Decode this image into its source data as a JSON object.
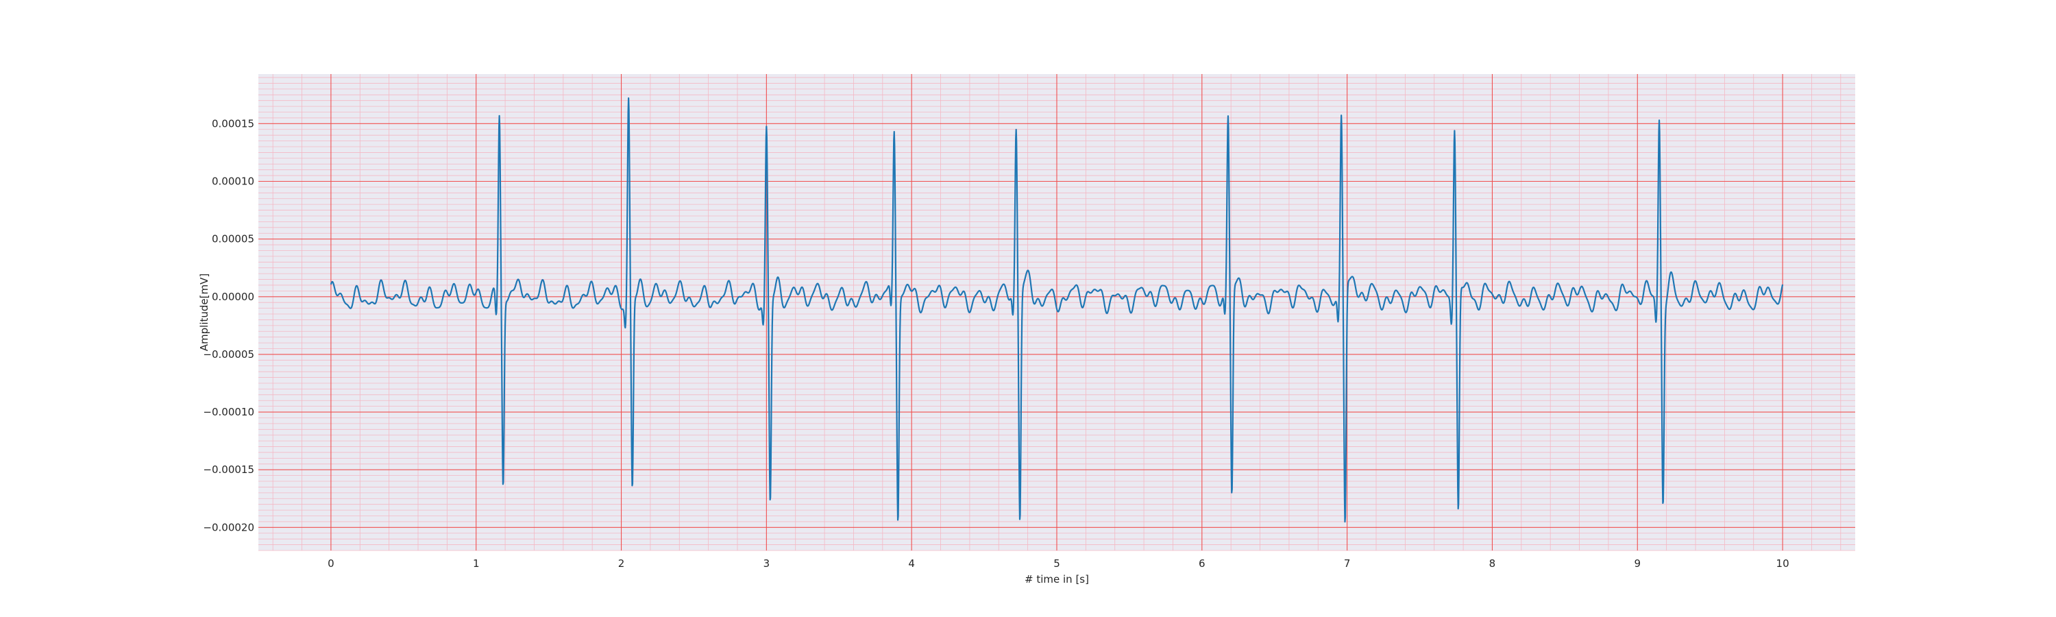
{
  "chart_data": {
    "type": "line",
    "title": "",
    "xlabel": "# time in [s]",
    "ylabel": "Amplitude[mV]",
    "xlim": [
      -0.5,
      10.5
    ],
    "ylim": [
      -0.00022,
      0.000193
    ],
    "xticks": [
      0,
      1,
      2,
      3,
      4,
      5,
      6,
      7,
      8,
      9,
      10
    ],
    "xtick_labels": [
      "0",
      "1",
      "2",
      "3",
      "4",
      "5",
      "6",
      "7",
      "8",
      "9",
      "10"
    ],
    "yticks": [
      0.00015,
      0.0001,
      5e-05,
      0.0,
      -5e-05,
      -0.0001,
      -0.00015,
      -0.0002
    ],
    "ytick_labels": [
      "0.00015",
      "0.00010",
      "0.00005",
      "0.00000",
      "−0.00005",
      "−0.00010",
      "−0.00015",
      "−0.00020"
    ],
    "grid": {
      "major": true,
      "minor": true,
      "major_color": "#f05050",
      "minor_color": "#f4b8c4",
      "background": "#eaeaf2"
    },
    "series_color": "#1f77b4",
    "beats": [
      {
        "t": 1.16,
        "r": 0.000161,
        "s": -0.000165
      },
      {
        "t": 2.05,
        "r": 0.000174,
        "s": -0.000171
      },
      {
        "t": 3.0,
        "r": 0.00015,
        "s": -0.00018
      },
      {
        "t": 3.88,
        "r": 0.000147,
        "s": -0.000187
      },
      {
        "t": 4.72,
        "r": 0.000148,
        "s": -0.000193
      },
      {
        "t": 6.18,
        "r": 0.000157,
        "s": -0.000178
      },
      {
        "t": 6.96,
        "r": 0.000167,
        "s": -0.000201
      },
      {
        "t": 7.74,
        "r": 0.000158,
        "s": -0.000186
      },
      {
        "t": 9.15,
        "r": 0.000158,
        "s": -0.000175
      }
    ],
    "baseline_amplitude": 1.2e-05
  }
}
